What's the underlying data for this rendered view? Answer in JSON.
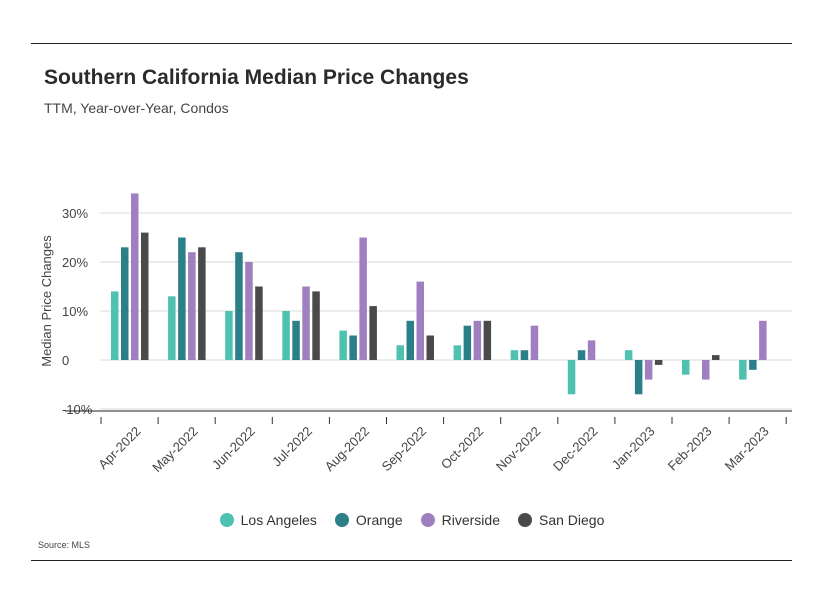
{
  "title": "Southern California Median Price Changes",
  "subtitle": "TTM, Year-over-Year, Condos",
  "source": "Source: MLS",
  "chart_data": {
    "type": "bar",
    "ylabel": "Median Price Changes",
    "ylim": [
      -10,
      35
    ],
    "yticks": [
      -10,
      0,
      10,
      20,
      30
    ],
    "ytick_labels": [
      "-10%",
      "0",
      "10%",
      "20%",
      "30%"
    ],
    "grid": true,
    "legend_position": "bottom",
    "categories": [
      "Apr-2022",
      "May-2022",
      "Jun-2022",
      "Jul-2022",
      "Aug-2022",
      "Sep-2022",
      "Oct-2022",
      "Nov-2022",
      "Dec-2022",
      "Jan-2023",
      "Feb-2023",
      "Mar-2023"
    ],
    "series": [
      {
        "name": "Los Angeles",
        "color": "#4fc1b0",
        "values": [
          14,
          13,
          10,
          10,
          6,
          3,
          3,
          2,
          -7,
          2,
          -3,
          -4
        ]
      },
      {
        "name": "Orange",
        "color": "#2a7f88",
        "values": [
          23,
          25,
          22,
          8,
          5,
          8,
          7,
          2,
          2,
          -7,
          0,
          -2
        ]
      },
      {
        "name": "Riverside",
        "color": "#a07fc0",
        "values": [
          34,
          22,
          20,
          15,
          25,
          16,
          8,
          7,
          4,
          -4,
          -4,
          8
        ]
      },
      {
        "name": "San Diego",
        "color": "#4a4a4a",
        "values": [
          26,
          23,
          15,
          14,
          11,
          5,
          8,
          0,
          0,
          -1,
          1,
          0
        ]
      }
    ]
  }
}
